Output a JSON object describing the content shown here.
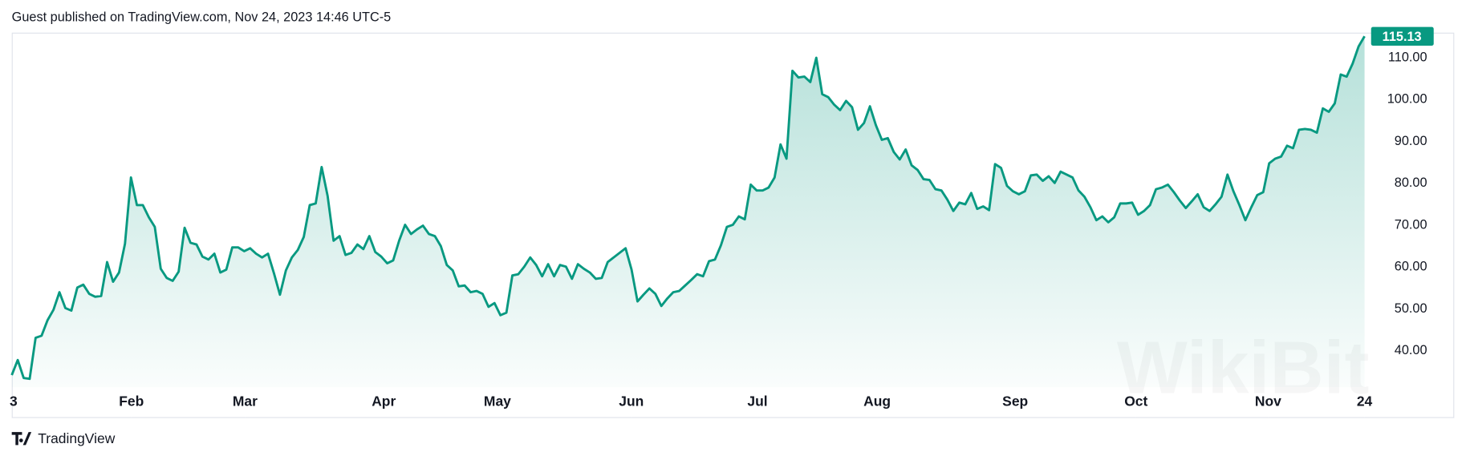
{
  "header": {
    "text": "Guest published on TradingView.com, Nov 24, 2023 14:46 UTC-5"
  },
  "footer": {
    "brand": "TradingView"
  },
  "watermark": "WikiBit",
  "chart_data": {
    "type": "area",
    "color": "#089981",
    "values": [
      34.2,
      37.8,
      33.5,
      33.3,
      43.1,
      43.6,
      47.3,
      49.8,
      54.0,
      50.2,
      49.6,
      55.1,
      55.8,
      53.6,
      52.9,
      53.1,
      61.2,
      56.5,
      58.7,
      65.6,
      81.4,
      74.8,
      74.8,
      71.9,
      69.6,
      59.6,
      57.4,
      56.7,
      58.9,
      69.4,
      65.8,
      65.4,
      62.5,
      61.8,
      63.2,
      58.7,
      59.4,
      64.7,
      64.7,
      63.8,
      64.5,
      63.2,
      62.3,
      63.2,
      58.5,
      53.4,
      59.2,
      62.3,
      64.1,
      67.2,
      74.8,
      75.2,
      83.9,
      77.0,
      66.3,
      67.4,
      62.9,
      63.4,
      65.4,
      64.3,
      67.4,
      63.6,
      62.5,
      60.9,
      61.6,
      66.3,
      70.1,
      67.9,
      69.0,
      69.9,
      67.9,
      67.4,
      65.0,
      60.5,
      59.2,
      55.4,
      55.6,
      54.0,
      54.3,
      53.6,
      50.5,
      51.4,
      48.5,
      49.1,
      58.0,
      58.3,
      60.1,
      62.3,
      60.5,
      57.8,
      60.7,
      57.8,
      60.5,
      60.1,
      57.2,
      60.7,
      59.6,
      58.7,
      57.2,
      57.4,
      61.2,
      62.3,
      63.4,
      64.5,
      59.4,
      51.8,
      53.4,
      54.9,
      53.6,
      50.7,
      52.5,
      54.0,
      54.3,
      55.6,
      56.9,
      58.3,
      57.8,
      61.4,
      61.8,
      65.2,
      69.6,
      70.1,
      72.1,
      71.4,
      79.7,
      78.3,
      78.3,
      79.0,
      81.4,
      89.3,
      85.9,
      106.9,
      105.3,
      105.5,
      104.2,
      110.0,
      101.3,
      100.6,
      98.8,
      97.5,
      99.7,
      98.2,
      92.8,
      94.4,
      98.4,
      93.9,
      90.4,
      90.8,
      87.5,
      85.7,
      88.1,
      84.3,
      83.2,
      81.0,
      80.8,
      78.6,
      78.3,
      76.1,
      73.4,
      75.4,
      75.0,
      77.7,
      73.9,
      74.5,
      73.6,
      84.6,
      83.7,
      79.4,
      78.1,
      77.4,
      78.1,
      81.9,
      82.1,
      80.6,
      81.7,
      80.1,
      82.8,
      82.1,
      81.4,
      78.3,
      76.8,
      74.3,
      71.2,
      72.1,
      70.7,
      71.9,
      75.2,
      75.2,
      75.4,
      72.5,
      73.4,
      74.8,
      78.6,
      79.0,
      79.7,
      77.9,
      75.9,
      74.1,
      75.7,
      77.4,
      74.3,
      73.4,
      75.0,
      76.8,
      82.1,
      78.1,
      74.8,
      71.2,
      74.3,
      77.2,
      77.9,
      84.8,
      85.9,
      86.4,
      89.0,
      88.4,
      92.8,
      93.0,
      92.8,
      92.1,
      97.9,
      97.1,
      99.1,
      106.0,
      105.5,
      108.6,
      112.7,
      115.13
    ],
    "xlim": [
      0,
      227.3
    ],
    "xticks": [
      {
        "value": 0.3,
        "label": "3"
      },
      {
        "value": 20.1,
        "label": "Feb"
      },
      {
        "value": 39.2,
        "label": "Mar"
      },
      {
        "value": 62.5,
        "label": "Apr"
      },
      {
        "value": 81.6,
        "label": "May"
      },
      {
        "value": 104.1,
        "label": "Jun"
      },
      {
        "value": 125.3,
        "label": "Jul"
      },
      {
        "value": 145.4,
        "label": "Aug"
      },
      {
        "value": 168.6,
        "label": "Sep"
      },
      {
        "value": 188.9,
        "label": "Oct"
      },
      {
        "value": 211.1,
        "label": "Nov"
      },
      {
        "value": 227.3,
        "label": "24"
      }
    ],
    "ylim": [
      31.3,
      116
    ],
    "yticks": [
      {
        "value": 40,
        "label": "40.00"
      },
      {
        "value": 50,
        "label": "50.00"
      },
      {
        "value": 60,
        "label": "60.00"
      },
      {
        "value": 70,
        "label": "70.00"
      },
      {
        "value": 80,
        "label": "80.00"
      },
      {
        "value": 90,
        "label": "90.00"
      },
      {
        "value": 100,
        "label": "100.00"
      },
      {
        "value": 110,
        "label": "110.00"
      }
    ],
    "grid": false
  }
}
